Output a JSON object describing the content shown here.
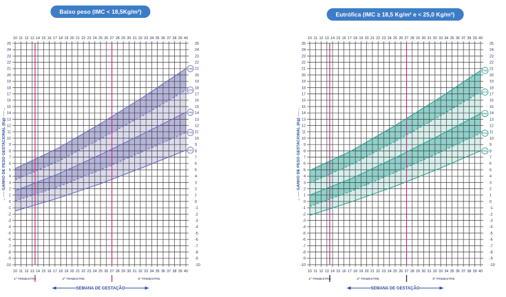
{
  "page": {
    "background": "#ffffff"
  },
  "chart_data": [
    {
      "type": "area",
      "title": "Baixo peso (IMC < 18,5Kg/m²)",
      "xlabel": "SEMANA DE GESTAÇÃO",
      "ylabel": "GANHO DE PESO GESTACIONAL (Kg)",
      "x_range": [
        10,
        40
      ],
      "y_range": [
        -10,
        25
      ],
      "x_tick_step": 1,
      "y_tick_step": 1,
      "grid": true,
      "trimester_lines_weeks": [
        13.5,
        27
      ],
      "trimesters": [
        "1º TRIMESTRE",
        "2º TRIMESTRE",
        "3º TRIMESTRE"
      ],
      "series": [
        {
          "name": "P90",
          "style": "solid",
          "points": [
            [
              10,
              5.2
            ],
            [
              17.5,
              8.4
            ],
            [
              25,
              12.3
            ],
            [
              32.5,
              16.5
            ],
            [
              40,
              21.0
            ]
          ]
        },
        {
          "name": "P75",
          "style": "dashed",
          "points": [
            [
              10,
              3.4
            ],
            [
              17.5,
              6.3
            ],
            [
              25,
              9.9
            ],
            [
              32.5,
              13.6
            ],
            [
              40,
              17.6
            ]
          ]
        },
        {
          "name": "P50",
          "style": "solid",
          "points": [
            [
              10,
              1.7
            ],
            [
              17.5,
              4.3
            ],
            [
              25,
              7.4
            ],
            [
              32.5,
              10.7
            ],
            [
              40,
              14.1
            ]
          ]
        },
        {
          "name": "P25",
          "style": "dashed",
          "points": [
            [
              10,
              0.1
            ],
            [
              17.5,
              2.3
            ],
            [
              25,
              5.0
            ],
            [
              32.5,
              7.9
            ],
            [
              40,
              10.9
            ]
          ]
        },
        {
          "name": "P10",
          "style": "solid",
          "points": [
            [
              10,
              -1.5
            ],
            [
              17.5,
              0.5
            ],
            [
              25,
              2.8
            ],
            [
              32.5,
              5.4
            ],
            [
              40,
              8.1
            ]
          ]
        }
      ],
      "bands": [
        {
          "between": [
            "P90",
            "P75"
          ],
          "tone": "dark"
        },
        {
          "between": [
            "P75",
            "P50"
          ],
          "tone": "light"
        },
        {
          "between": [
            "P50",
            "P25"
          ],
          "tone": "dark"
        },
        {
          "between": [
            "P25",
            "P10"
          ],
          "tone": "light"
        }
      ],
      "colors": {
        "accent": "#3d7dc7",
        "line": "#6a6fc0",
        "band_dark": "#b5b5da",
        "band_light": "#dcdbed",
        "vline": "#bb2f7d",
        "divider": "#bb2f7d",
        "axis_text": "#1e2a52",
        "blue_label": "#2d4f9e",
        "grid": "#3d3d3d"
      }
    },
    {
      "type": "area",
      "title": "Eutrófica (IMC ≥  18,5 Kg/m² e < 25,0 Kg/m²)",
      "xlabel": "SEMANA DE GESTAÇÃO",
      "ylabel": "GANHO DE PESO GESTACIONAL (Kg)",
      "x_range": [
        10,
        40
      ],
      "y_range": [
        -10,
        25
      ],
      "x_tick_step": 1,
      "y_tick_step": 1,
      "grid": true,
      "trimester_lines_weeks": [
        13.5,
        27
      ],
      "trimesters": [
        "1º TRIMESTRE",
        "2º TRIMESTRE",
        "3º TRIMESTRE"
      ],
      "series": [
        {
          "name": "P90",
          "style": "solid",
          "points": [
            [
              10,
              4.9
            ],
            [
              17.5,
              8.1
            ],
            [
              25,
              12.0
            ],
            [
              32.5,
              16.2
            ],
            [
              40,
              20.7
            ]
          ]
        },
        {
          "name": "P75",
          "style": "dashed",
          "points": [
            [
              10,
              2.9
            ],
            [
              17.5,
              5.9
            ],
            [
              25,
              9.5
            ],
            [
              32.5,
              13.3
            ],
            [
              40,
              17.3
            ]
          ]
        },
        {
          "name": "P50",
          "style": "solid",
          "points": [
            [
              10,
              1.0
            ],
            [
              17.5,
              3.7
            ],
            [
              25,
              6.9
            ],
            [
              32.5,
              10.3
            ],
            [
              40,
              13.9
            ]
          ]
        },
        {
          "name": "P25",
          "style": "dashed",
          "points": [
            [
              10,
              -0.8
            ],
            [
              17.5,
              1.7
            ],
            [
              25,
              4.6
            ],
            [
              32.5,
              7.6
            ],
            [
              40,
              10.8
            ]
          ]
        },
        {
          "name": "P10",
          "style": "solid",
          "points": [
            [
              10,
              -2.2
            ],
            [
              17.5,
              0.0
            ],
            [
              25,
              2.4
            ],
            [
              32.5,
              5.1
            ],
            [
              40,
              8.0
            ]
          ]
        }
      ],
      "bands": [
        {
          "between": [
            "P90",
            "P75"
          ],
          "tone": "dark"
        },
        {
          "between": [
            "P75",
            "P50"
          ],
          "tone": "light"
        },
        {
          "between": [
            "P50",
            "P25"
          ],
          "tone": "dark"
        },
        {
          "between": [
            "P25",
            "P10"
          ],
          "tone": "light"
        }
      ],
      "colors": {
        "accent": "#3d7dc7",
        "line": "#2aa094",
        "band_dark": "#90d1ca",
        "band_light": "#d6efec",
        "vline": "#bb2f7d",
        "divider": "#1e2a52",
        "axis_text": "#1e2a52",
        "blue_label": "#2d4f9e",
        "grid": "#3d3d3d"
      }
    }
  ]
}
